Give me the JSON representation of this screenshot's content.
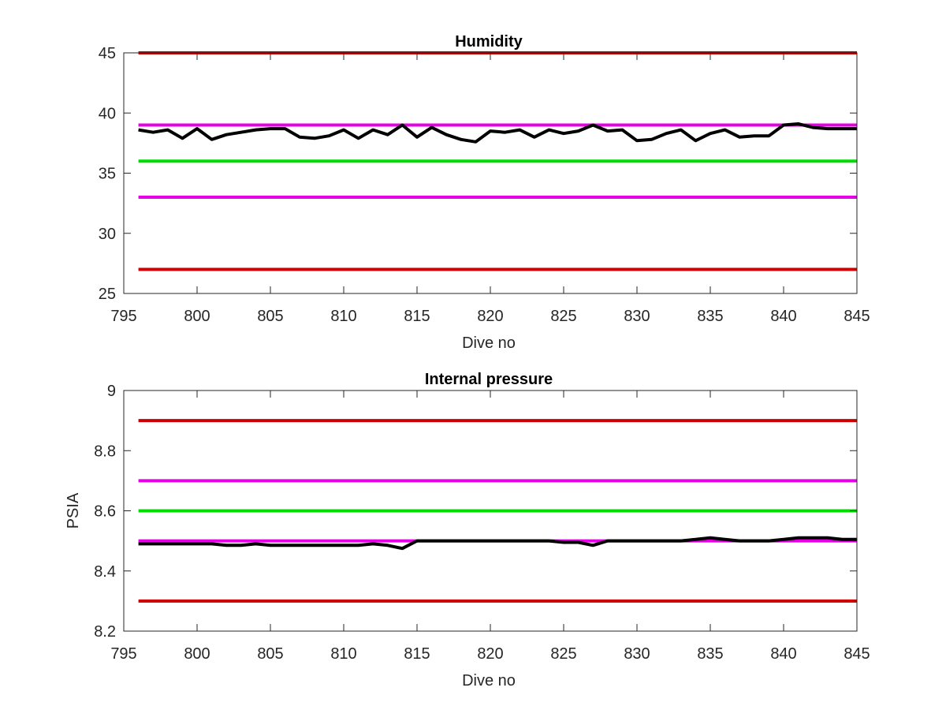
{
  "chart_data": [
    {
      "type": "line",
      "title": "Humidity",
      "xlabel": "Dive no",
      "ylabel": "",
      "xlim": [
        795,
        845
      ],
      "ylim": [
        25,
        45
      ],
      "xticks": [
        795,
        800,
        805,
        810,
        815,
        820,
        825,
        830,
        835,
        840,
        845
      ],
      "yticks": [
        25,
        30,
        35,
        40,
        45
      ],
      "grid": false,
      "limit_lines": [
        {
          "y": 45,
          "color": "#cc0000"
        },
        {
          "y": 39,
          "color": "#e600e6"
        },
        {
          "y": 36,
          "color": "#00dd00"
        },
        {
          "y": 33,
          "color": "#e600e6"
        },
        {
          "y": 27,
          "color": "#cc0000"
        }
      ],
      "series": [
        {
          "color": "#000000",
          "x": [
            796,
            797,
            798,
            799,
            800,
            801,
            802,
            803,
            804,
            805,
            806,
            807,
            808,
            809,
            810,
            811,
            812,
            813,
            814,
            815,
            816,
            817,
            818,
            819,
            820,
            821,
            822,
            823,
            824,
            825,
            826,
            827,
            828,
            829,
            830,
            831,
            832,
            833,
            834,
            835,
            836,
            837,
            838,
            839,
            840,
            841,
            842,
            843,
            844,
            845
          ],
          "values": [
            38.6,
            38.4,
            38.6,
            37.9,
            38.7,
            37.8,
            38.2,
            38.4,
            38.6,
            38.7,
            38.7,
            38.0,
            37.9,
            38.1,
            38.6,
            37.9,
            38.6,
            38.2,
            39.0,
            38.0,
            38.8,
            38.2,
            37.8,
            37.6,
            38.5,
            38.4,
            38.6,
            38.0,
            38.6,
            38.3,
            38.5,
            39.0,
            38.5,
            38.6,
            37.7,
            37.8,
            38.3,
            38.6,
            37.7,
            38.3,
            38.6,
            38.0,
            38.1,
            38.1,
            39.0,
            39.1,
            38.8,
            38.7,
            38.7,
            38.7
          ]
        }
      ]
    },
    {
      "type": "line",
      "title": "Internal pressure",
      "xlabel": "Dive no",
      "ylabel": "PSIA",
      "xlim": [
        795,
        845
      ],
      "ylim": [
        8.2,
        9
      ],
      "xticks": [
        795,
        800,
        805,
        810,
        815,
        820,
        825,
        830,
        835,
        840,
        845
      ],
      "yticks": [
        "8.2",
        "8.4",
        "8.6",
        "8.8",
        "9"
      ],
      "grid": false,
      "limit_lines": [
        {
          "y": 8.9,
          "color": "#cc0000"
        },
        {
          "y": 8.7,
          "color": "#e600e6"
        },
        {
          "y": 8.6,
          "color": "#00dd00"
        },
        {
          "y": 8.5,
          "color": "#e600e6"
        },
        {
          "y": 8.3,
          "color": "#cc0000"
        }
      ],
      "series": [
        {
          "color": "#000000",
          "x": [
            796,
            797,
            798,
            799,
            800,
            801,
            802,
            803,
            804,
            805,
            806,
            807,
            808,
            809,
            810,
            811,
            812,
            813,
            814,
            815,
            816,
            817,
            818,
            819,
            820,
            821,
            822,
            823,
            824,
            825,
            826,
            827,
            828,
            829,
            830,
            831,
            832,
            833,
            834,
            835,
            836,
            837,
            838,
            839,
            840,
            841,
            842,
            843,
            844,
            845
          ],
          "values": [
            8.49,
            8.49,
            8.49,
            8.49,
            8.49,
            8.49,
            8.485,
            8.485,
            8.49,
            8.485,
            8.485,
            8.485,
            8.485,
            8.485,
            8.485,
            8.485,
            8.49,
            8.485,
            8.475,
            8.5,
            8.5,
            8.5,
            8.5,
            8.5,
            8.5,
            8.5,
            8.5,
            8.5,
            8.5,
            8.495,
            8.495,
            8.485,
            8.5,
            8.5,
            8.5,
            8.5,
            8.5,
            8.5,
            8.505,
            8.51,
            8.505,
            8.5,
            8.5,
            8.5,
            8.505,
            8.51,
            8.51,
            8.51,
            8.505,
            8.505
          ]
        }
      ]
    }
  ]
}
